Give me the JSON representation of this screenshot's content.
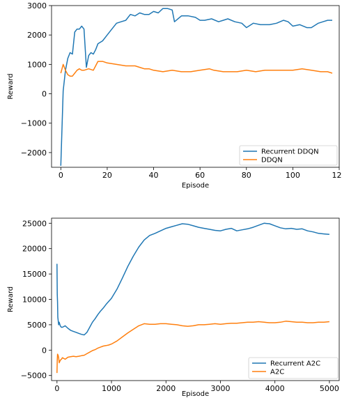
{
  "colors": {
    "series_primary": "#1f77b4",
    "series_secondary": "#ff7f0e",
    "axis": "#000000",
    "background": "#ffffff"
  },
  "chart_data": [
    {
      "type": "line",
      "title": "",
      "xlabel": "Episode",
      "ylabel": "Reward",
      "xlim": [
        -4,
        120
      ],
      "ylim": [
        -2500,
        3000
      ],
      "xticks": [
        0,
        20,
        40,
        60,
        80,
        100,
        120
      ],
      "yticks": [
        -2000,
        -1000,
        0,
        1000,
        2000,
        3000
      ],
      "xtick_labels": [
        "0",
        "20",
        "40",
        "60",
        "80",
        "100",
        "120"
      ],
      "ytick_labels": [
        "−2000",
        "−1000",
        "0",
        "1000",
        "2000",
        "3000"
      ],
      "grid": false,
      "legend_position": "lower-right",
      "series": [
        {
          "name": "Recurrent DDQN",
          "color": "#1f77b4",
          "x": [
            0,
            1,
            2,
            3,
            4,
            5,
            6,
            7,
            8,
            9,
            10,
            11,
            12,
            13,
            14,
            15,
            16,
            18,
            20,
            22,
            24,
            26,
            28,
            30,
            32,
            34,
            36,
            38,
            40,
            42,
            44,
            46,
            48,
            49,
            52,
            55,
            58,
            60,
            62,
            65,
            68,
            70,
            72,
            75,
            78,
            80,
            83,
            86,
            90,
            93,
            96,
            98,
            100,
            103,
            106,
            108,
            111,
            113,
            115,
            117
          ],
          "y": [
            -2450,
            100,
            800,
            1200,
            1400,
            1350,
            2100,
            2200,
            2200,
            2300,
            2200,
            900,
            1300,
            1400,
            1350,
            1500,
            1700,
            1800,
            2000,
            2200,
            2400,
            2450,
            2500,
            2700,
            2650,
            2750,
            2700,
            2700,
            2800,
            2750,
            2900,
            2900,
            2850,
            2450,
            2650,
            2650,
            2600,
            2500,
            2500,
            2550,
            2450,
            2500,
            2550,
            2450,
            2400,
            2250,
            2400,
            2350,
            2350,
            2400,
            2500,
            2450,
            2300,
            2350,
            2250,
            2250,
            2400,
            2450,
            2500,
            2500
          ]
        },
        {
          "name": "DDQN",
          "color": "#ff7f0e",
          "x": [
            0,
            1,
            2,
            3,
            4,
            5,
            6,
            7,
            8,
            9,
            10,
            12,
            14,
            15,
            16,
            18,
            20,
            24,
            28,
            32,
            34,
            36,
            38,
            40,
            44,
            48,
            52,
            56,
            60,
            64,
            66,
            70,
            72,
            76,
            80,
            84,
            88,
            92,
            96,
            100,
            104,
            108,
            112,
            115,
            117
          ],
          "y": [
            700,
            1000,
            800,
            650,
            600,
            600,
            700,
            800,
            850,
            800,
            800,
            850,
            800,
            950,
            1100,
            1100,
            1050,
            1000,
            950,
            950,
            900,
            850,
            850,
            800,
            750,
            800,
            750,
            750,
            800,
            850,
            800,
            750,
            750,
            750,
            800,
            750,
            800,
            800,
            800,
            800,
            850,
            800,
            750,
            750,
            700
          ]
        }
      ]
    },
    {
      "type": "line",
      "title": "",
      "xlabel": "Episode",
      "ylabel": "Reward",
      "xlim": [
        -100,
        5180
      ],
      "ylim": [
        -6000,
        26000
      ],
      "xticks": [
        0,
        1000,
        2000,
        3000,
        4000,
        5000
      ],
      "yticks": [
        -5000,
        0,
        5000,
        10000,
        15000,
        20000,
        25000
      ],
      "xtick_labels": [
        "0",
        "1000",
        "2000",
        "3000",
        "4000",
        "5000"
      ],
      "ytick_labels": [
        "−5000",
        "0",
        "5000",
        "10000",
        "15000",
        "20000",
        "25000"
      ],
      "grid": false,
      "legend_position": "lower-right",
      "series": [
        {
          "name": "Recurrent A2C",
          "color": "#1f77b4",
          "x": [
            0,
            5,
            10,
            15,
            20,
            30,
            40,
            60,
            80,
            100,
            150,
            200,
            250,
            300,
            350,
            400,
            450,
            500,
            550,
            600,
            650,
            700,
            750,
            800,
            850,
            900,
            1000,
            1100,
            1200,
            1300,
            1400,
            1500,
            1600,
            1700,
            1800,
            1900,
            2000,
            2100,
            2200,
            2300,
            2400,
            2500,
            2600,
            2700,
            2800,
            2900,
            3000,
            3100,
            3200,
            3300,
            3400,
            3500,
            3600,
            3700,
            3800,
            3900,
            4000,
            4100,
            4200,
            4300,
            4400,
            4500,
            4600,
            4700,
            4800,
            4900,
            5000
          ],
          "y": [
            17000,
            11000,
            9500,
            6500,
            6000,
            5000,
            5500,
            4800,
            4500,
            4500,
            4800,
            4300,
            3900,
            3700,
            3500,
            3300,
            3100,
            3000,
            3500,
            4500,
            5500,
            6200,
            7000,
            7700,
            8300,
            9000,
            10200,
            12000,
            14200,
            16500,
            18500,
            20300,
            21700,
            22600,
            23000,
            23500,
            24000,
            24300,
            24600,
            24900,
            24800,
            24500,
            24200,
            24000,
            23800,
            23600,
            23500,
            23800,
            24000,
            23500,
            23700,
            23900,
            24200,
            24600,
            25000,
            24900,
            24500,
            24100,
            23900,
            24000,
            23800,
            23900,
            23500,
            23300,
            23000,
            22900,
            22800
          ]
        },
        {
          "name": "A2C",
          "color": "#ff7f0e",
          "x": [
            0,
            5,
            10,
            20,
            30,
            40,
            60,
            80,
            100,
            150,
            200,
            250,
            300,
            350,
            400,
            450,
            500,
            550,
            600,
            650,
            700,
            750,
            800,
            850,
            900,
            950,
            1000,
            1100,
            1200,
            1300,
            1400,
            1500,
            1600,
            1700,
            1800,
            1900,
            2000,
            2100,
            2200,
            2300,
            2400,
            2500,
            2600,
            2700,
            2800,
            2900,
            3000,
            3100,
            3200,
            3300,
            3400,
            3500,
            3600,
            3700,
            3800,
            3900,
            4000,
            4100,
            4200,
            4300,
            4400,
            4500,
            4600,
            4700,
            4800,
            4900,
            5000
          ],
          "y": [
            -4500,
            -2000,
            -800,
            -1000,
            -1500,
            -2500,
            -2000,
            -1800,
            -1500,
            -1800,
            -1400,
            -1300,
            -1200,
            -1300,
            -1200,
            -1100,
            -1000,
            -700,
            -400,
            -100,
            100,
            400,
            600,
            800,
            900,
            1000,
            1200,
            1800,
            2600,
            3400,
            4100,
            4800,
            5200,
            5100,
            5100,
            5200,
            5200,
            5100,
            5000,
            4800,
            4700,
            4800,
            5000,
            5000,
            5100,
            5200,
            5100,
            5200,
            5300,
            5300,
            5400,
            5500,
            5500,
            5600,
            5500,
            5400,
            5400,
            5500,
            5700,
            5600,
            5500,
            5500,
            5400,
            5400,
            5500,
            5500,
            5600
          ]
        }
      ]
    }
  ]
}
